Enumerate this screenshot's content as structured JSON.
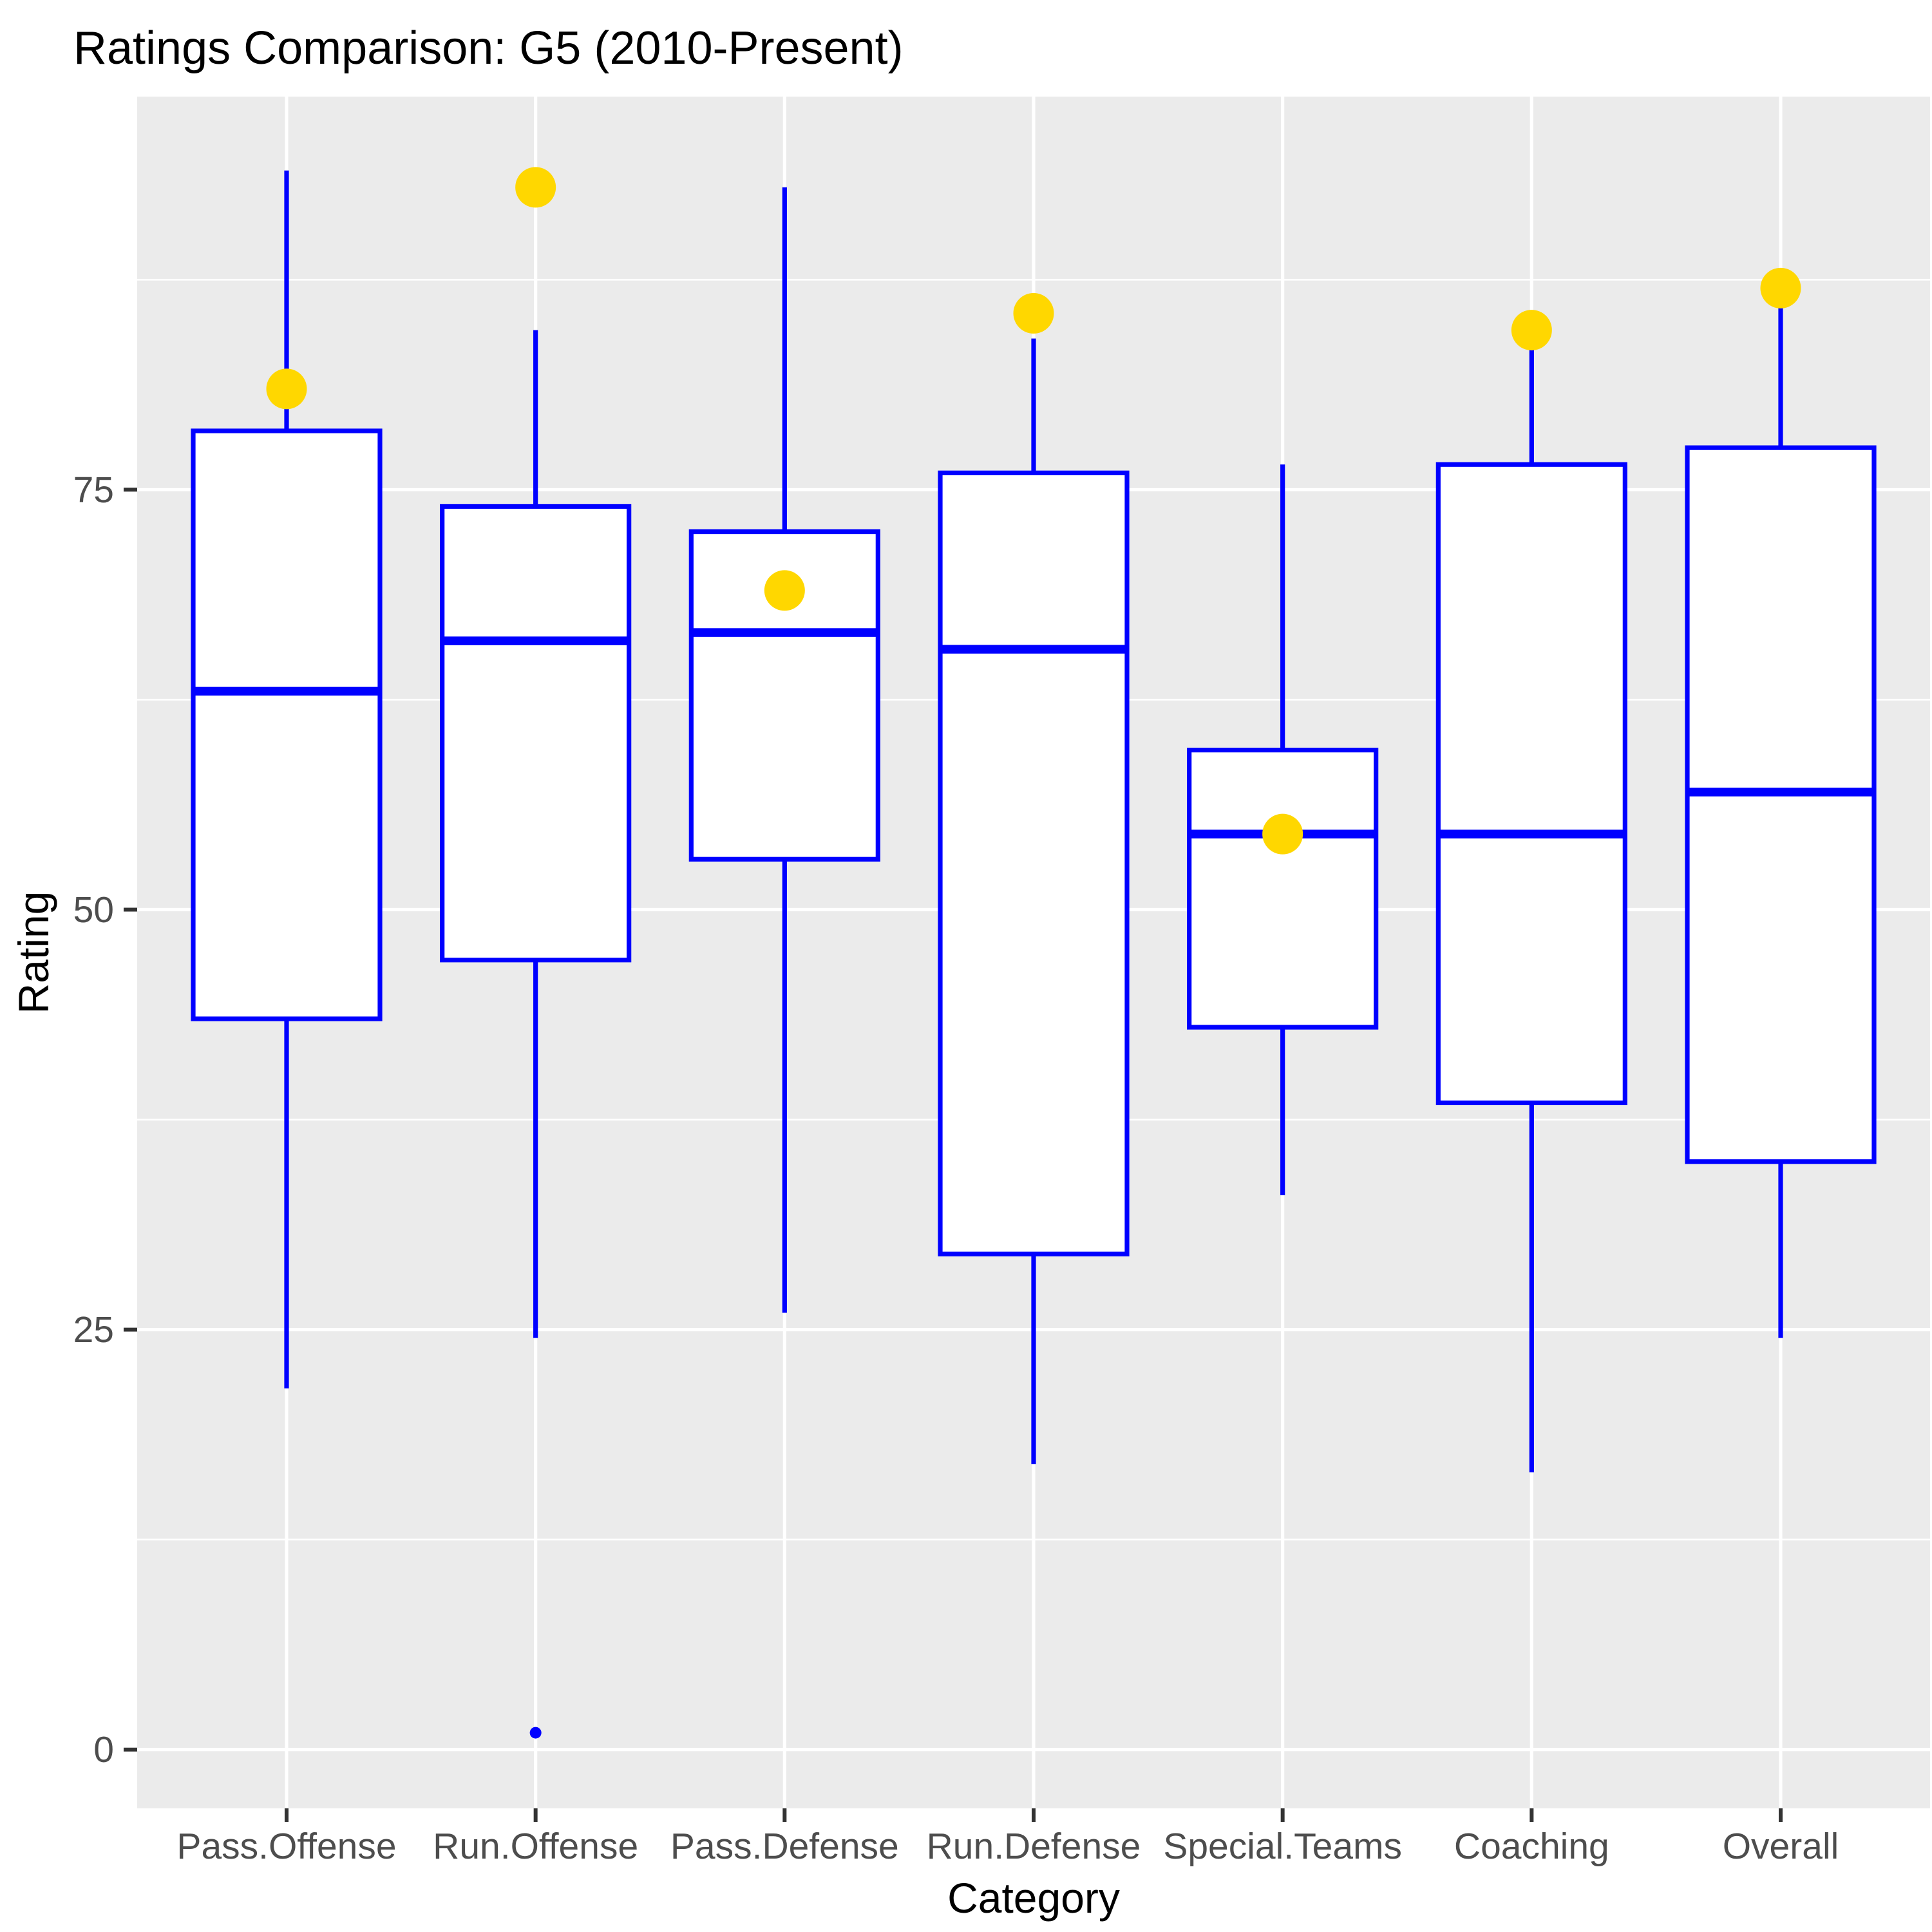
{
  "chart_data": {
    "type": "boxplot",
    "title": "Ratings Comparison: G5 (2010-Present)",
    "xlabel": "Category",
    "ylabel": "Rating",
    "ylim": [
      -3.5,
      98.4
    ],
    "yticks": [
      0,
      25,
      50,
      75
    ],
    "minor_gridlines": [
      12.5,
      37.5,
      62.5,
      87.5
    ],
    "grid": true,
    "legend": false,
    "categories": [
      "Pass.Offense",
      "Run.Offense",
      "Pass.Defense",
      "Run.Defense",
      "Special.Teams",
      "Coaching",
      "Overall"
    ],
    "boxes": [
      {
        "category": "Pass.Offense",
        "whisker_low": 21.5,
        "q1": 43.5,
        "median": 63,
        "q3": 78.5,
        "whisker_high": 94,
        "outliers": []
      },
      {
        "category": "Run.Offense",
        "whisker_low": 24.5,
        "q1": 47,
        "median": 66,
        "q3": 74,
        "whisker_high": 84.5,
        "outliers": [
          1
        ]
      },
      {
        "category": "Pass.Defense",
        "whisker_low": 26,
        "q1": 53,
        "median": 66.5,
        "q3": 72.5,
        "whisker_high": 93,
        "outliers": []
      },
      {
        "category": "Run.Defense",
        "whisker_low": 17,
        "q1": 29.5,
        "median": 65.5,
        "q3": 76,
        "whisker_high": 84,
        "outliers": []
      },
      {
        "category": "Special.Teams",
        "whisker_low": 33,
        "q1": 43,
        "median": 54.5,
        "q3": 59.5,
        "whisker_high": 76.5,
        "outliers": []
      },
      {
        "category": "Coaching",
        "whisker_low": 16.5,
        "q1": 38.5,
        "median": 54.5,
        "q3": 76.5,
        "whisker_high": 84,
        "outliers": []
      },
      {
        "category": "Overall",
        "whisker_low": 24.5,
        "q1": 35,
        "median": 57,
        "q3": 77.5,
        "whisker_high": 86,
        "outliers": []
      }
    ],
    "highlight_points": [
      {
        "category": "Pass.Offense",
        "value": 81
      },
      {
        "category": "Run.Offense",
        "value": 93
      },
      {
        "category": "Pass.Defense",
        "value": 69
      },
      {
        "category": "Run.Defense",
        "value": 85.5
      },
      {
        "category": "Special.Teams",
        "value": 54.5
      },
      {
        "category": "Coaching",
        "value": 84.5
      },
      {
        "category": "Overall",
        "value": 87
      }
    ],
    "colors": {
      "box_stroke": "#0000FF",
      "box_fill": "#FFFFFF",
      "highlight_point": "#FFD700",
      "outlier_point": "#0000FF",
      "panel_bg": "#EBEBEB",
      "gridline": "#FFFFFF",
      "axis_text": "#4D4D4D",
      "tick_mark": "#333333",
      "title_text": "#000000"
    }
  }
}
